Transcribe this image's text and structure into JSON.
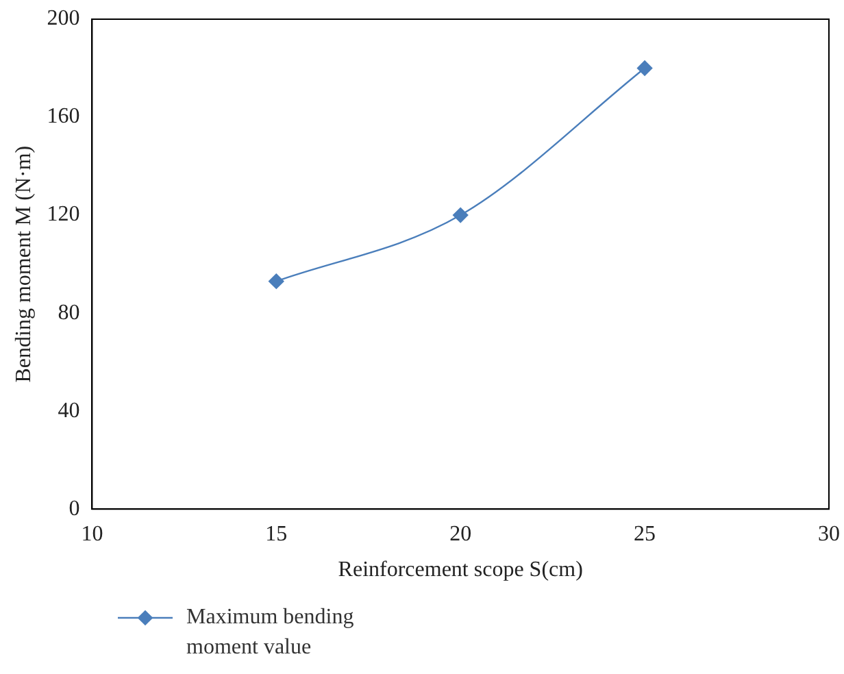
{
  "chart_data": {
    "type": "line",
    "xlabel": "Reinforcement scope S(cm)",
    "ylabel": "Bending moment M (N·m)",
    "x": [
      15,
      20,
      25
    ],
    "series": [
      {
        "name": "Maximum bending moment value",
        "color": "#4a7ebb",
        "values": [
          93,
          120,
          180
        ]
      }
    ],
    "xlim": [
      10,
      30
    ],
    "xticks": [
      10,
      15,
      20,
      25,
      30
    ],
    "ylim": [
      0,
      200
    ],
    "yticks": [
      0,
      40,
      80,
      120,
      160,
      200
    ],
    "grid": false,
    "legend": "bottom left",
    "marker": "diamond",
    "line_style": "solid"
  }
}
